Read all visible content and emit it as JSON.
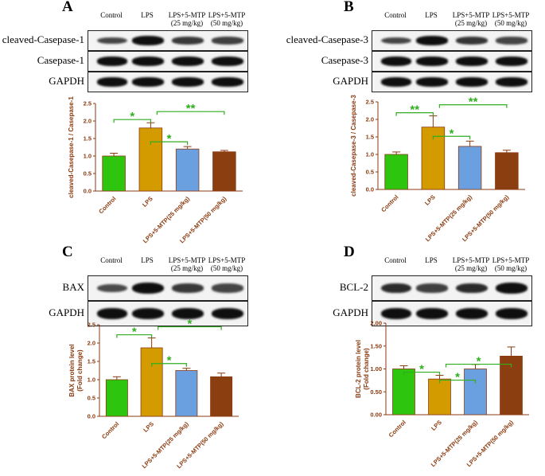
{
  "lane_labels": [
    "Control",
    "LPS",
    "LPS+5-MTP\n(25 mg/kg)",
    "LPS+5-MTP\n(50 mg/kg)"
  ],
  "colors": {
    "bars": [
      "#2ec50e",
      "#d39b00",
      "#6ba0e0",
      "#8b3f10"
    ],
    "axis": "#8b3a0f",
    "sig": "#2fae1e"
  },
  "panels": [
    {
      "id": "A",
      "blot_rows": [
        "cleaved-Casepase-1",
        "Casepase-1",
        "GAPDH"
      ],
      "chart_data": {
        "type": "bar",
        "categories": [
          "Control",
          "LPS",
          "LPS+5-MTP(25 mg/kg)",
          "LPS+5-MTP(50 mg/kg)"
        ],
        "values": [
          1.0,
          1.8,
          1.2,
          1.12
        ],
        "errors": [
          0.08,
          0.15,
          0.07,
          0.04
        ],
        "ylabel": "cleaved-Casepase-1 / Casepase-1",
        "ylim": [
          0,
          2.5
        ],
        "yticks": [
          "0.0",
          "0.5",
          "1.0",
          "1.5",
          "2.0",
          "2.5"
        ],
        "significance": [
          {
            "from": 0,
            "to": 1,
            "label": "*"
          },
          {
            "from": 1,
            "to": 2,
            "label": "*"
          },
          {
            "from": 1,
            "to": 3,
            "label": "**"
          }
        ]
      }
    },
    {
      "id": "B",
      "blot_rows": [
        "cleaved-Casepase-3",
        "Casepase-3",
        "GAPDH"
      ],
      "chart_data": {
        "type": "bar",
        "categories": [
          "Control",
          "LPS",
          "LPS+5-MTP(25 mg/kg)",
          "LPS+5-MTP(50 mg/kg)"
        ],
        "values": [
          1.0,
          1.78,
          1.23,
          1.05
        ],
        "errors": [
          0.07,
          0.32,
          0.15,
          0.07
        ],
        "ylabel": "cleaved-Casepase-3 / Casepase-3",
        "ylim": [
          0,
          2.5
        ],
        "yticks": [
          "0.0",
          "0.5",
          "1.0",
          "1.5",
          "2.0",
          "2.5"
        ],
        "significance": [
          {
            "from": 0,
            "to": 1,
            "label": "**"
          },
          {
            "from": 1,
            "to": 2,
            "label": "*"
          },
          {
            "from": 1,
            "to": 3,
            "label": "**"
          }
        ]
      }
    },
    {
      "id": "C",
      "blot_rows": [
        "BAX",
        "GAPDH"
      ],
      "chart_data": {
        "type": "bar",
        "categories": [
          "Control",
          "LPS",
          "LPS+5-MTP(25 mg/kg)",
          "LPS+5-MTP(50 mg/kg)"
        ],
        "values": [
          1.0,
          1.87,
          1.25,
          1.08
        ],
        "errors": [
          0.08,
          0.27,
          0.06,
          0.1
        ],
        "ylabel": "BAX protein level (Fold change)",
        "ylim": [
          0,
          2.5
        ],
        "yticks": [
          "0.0",
          "0.5",
          "1.0",
          "1.5",
          "2.0",
          "2.5"
        ],
        "significance": [
          {
            "from": 0,
            "to": 1,
            "label": "*"
          },
          {
            "from": 1,
            "to": 2,
            "label": "*"
          },
          {
            "from": 1,
            "to": 3,
            "label": "*"
          }
        ]
      }
    },
    {
      "id": "D",
      "blot_rows": [
        "BCL-2",
        "GAPDH"
      ],
      "chart_data": {
        "type": "bar",
        "categories": [
          "Control",
          "LPS",
          "LPS+5-MTP(25 mg/kg)",
          "LPS+5-MTP(50 mg/kg)"
        ],
        "values": [
          1.0,
          0.78,
          1.0,
          1.28
        ],
        "errors": [
          0.07,
          0.08,
          0.1,
          0.2
        ],
        "ylabel": "BCL-2 protein level (Fold change)",
        "ylim": [
          0,
          2.0
        ],
        "yticks": [
          "0.00",
          "0.50",
          "1.00",
          "1.50",
          "2.00"
        ],
        "significance": [
          {
            "from": 0,
            "to": 1,
            "label": "*"
          },
          {
            "from": 1,
            "to": 2,
            "label": "*"
          },
          {
            "from": 1,
            "to": 3,
            "label": "*"
          }
        ]
      }
    }
  ]
}
